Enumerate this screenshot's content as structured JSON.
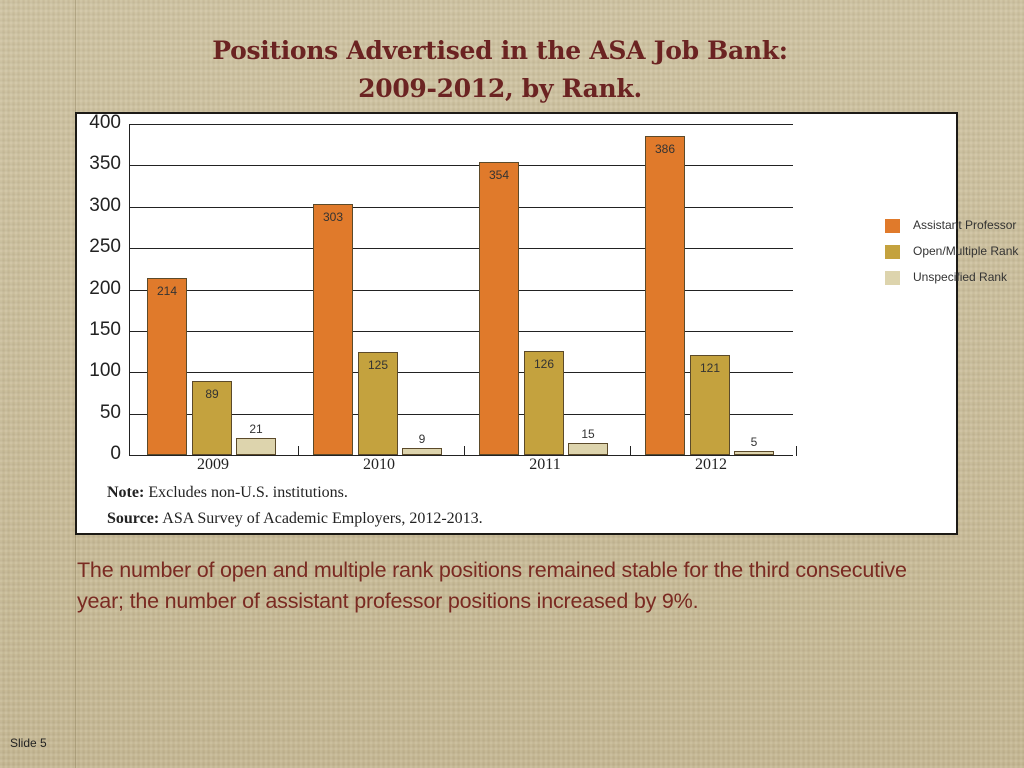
{
  "slide": {
    "title_line1": "Positions Advertised in the ASA Job Bank:",
    "title_line2": "2009-2012, by Rank.",
    "caption": "The number of open and multiple rank positions remained stable for the third consecutive year; the number of assistant professor positions increased by 9%.",
    "slide_number": "Slide 5"
  },
  "chart": {
    "note_label": "Note:",
    "note_text": " Excludes non-U.S. institutions.",
    "source_label": "Source:",
    "source_text": " ASA Survey of Academic Employers, 2012-2013.",
    "colors": {
      "Assistant Professor": "#e07a2b",
      "Open/Multiple Rank": "#c4a23e",
      "Unspecified Rank": "#ddd4ad"
    }
  },
  "chart_data": {
    "type": "bar",
    "title": "Positions Advertised in the ASA Job Bank: 2009-2012, by Rank.",
    "categories": [
      "2009",
      "2010",
      "2011",
      "2012"
    ],
    "series": [
      {
        "name": "Assistant Professor",
        "values": [
          214,
          303,
          354,
          386
        ]
      },
      {
        "name": "Open/Multiple Rank",
        "values": [
          89,
          125,
          126,
          121
        ]
      },
      {
        "name": "Unspecified Rank",
        "values": [
          21,
          9,
          15,
          5
        ]
      }
    ],
    "xlabel": "",
    "ylabel": "",
    "ylim": [
      0,
      400
    ],
    "yticks": [
      0,
      50,
      100,
      150,
      200,
      250,
      300,
      350,
      400
    ],
    "grid": true,
    "legend_position": "right",
    "data_labels": true
  }
}
